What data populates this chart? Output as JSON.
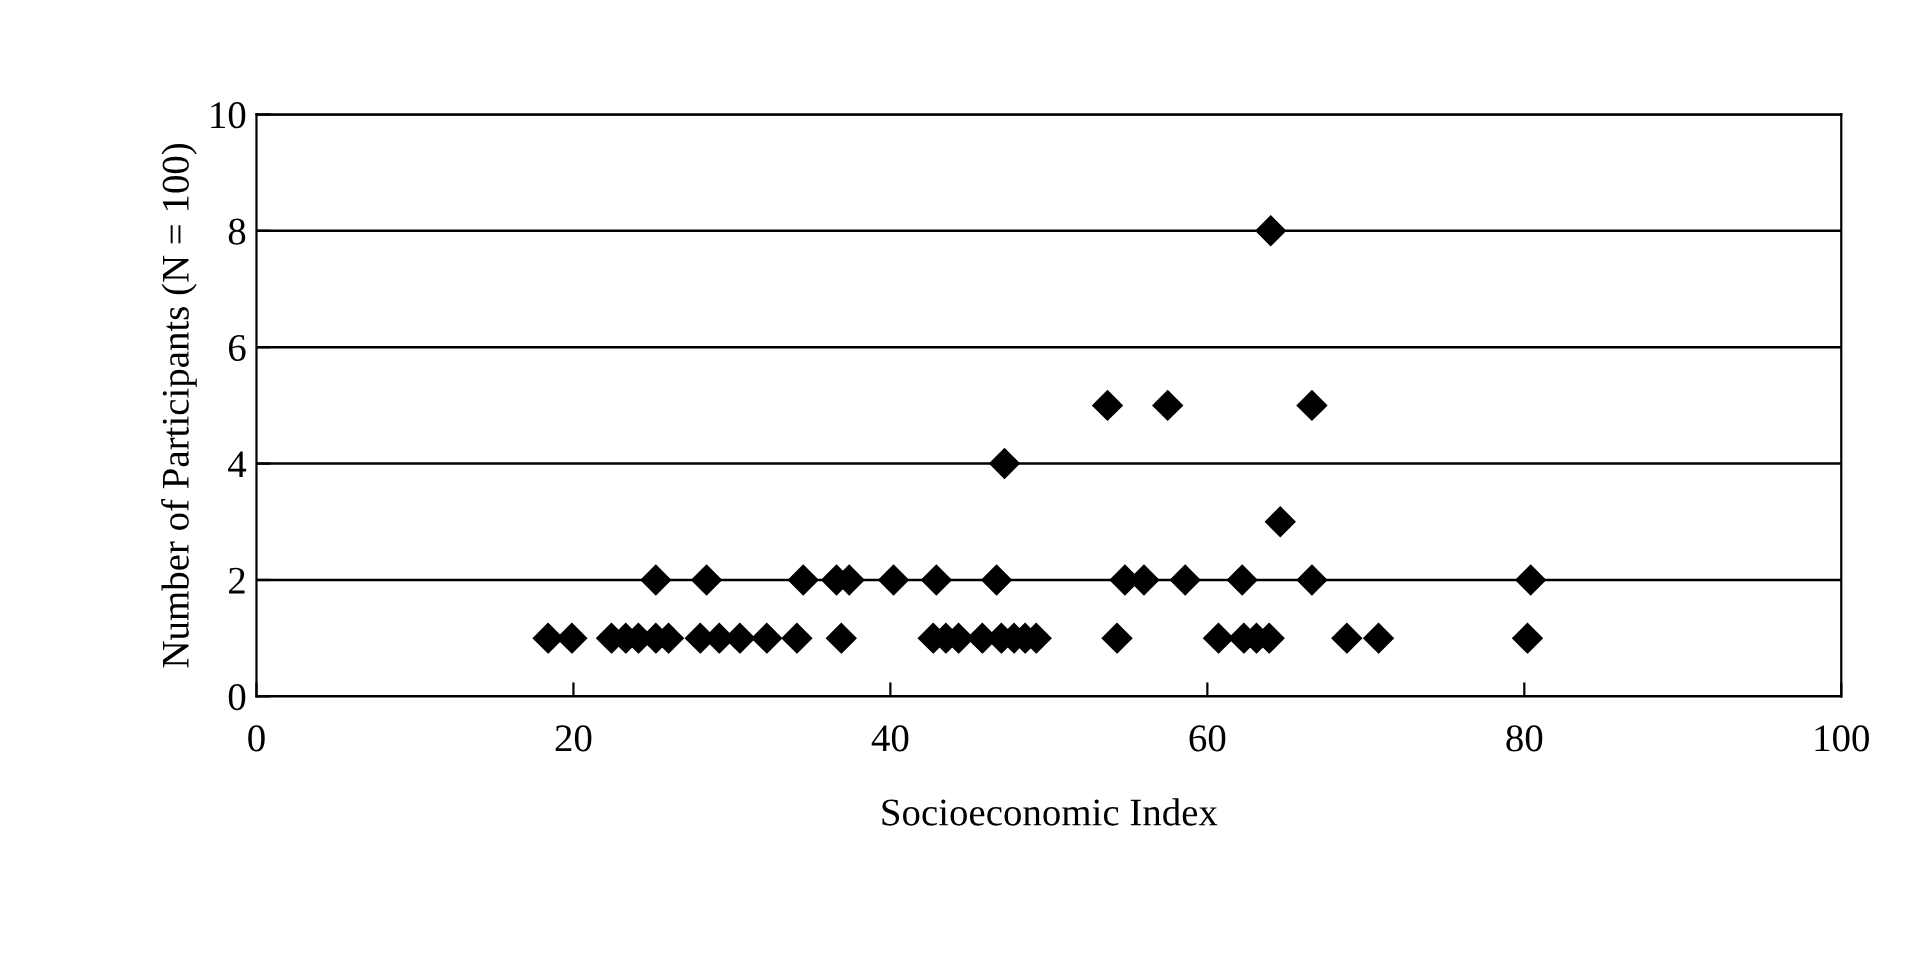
{
  "chart_data": {
    "type": "scatter",
    "xlabel": "Socioeconomic Index",
    "ylabel": "Number of Participants (N = 100)",
    "x": [
      18.4,
      19.9,
      22.4,
      23.3,
      24.1,
      25.2,
      26.0,
      28.0,
      29.2,
      30.5,
      32.2,
      34.1,
      36.9,
      42.7,
      43.5,
      44.3,
      45.8,
      47.0,
      47.8,
      48.5,
      49.2,
      54.3,
      60.7,
      62.3,
      63.1,
      63.9,
      68.8,
      70.8,
      80.2,
      25.2,
      28.4,
      34.5,
      36.6,
      37.4,
      40.2,
      42.9,
      46.7,
      54.8,
      56.0,
      58.6,
      62.2,
      66.6,
      80.4,
      47.2,
      64.6,
      53.7,
      57.5,
      66.6,
      64.0
    ],
    "values": [
      1,
      1,
      1,
      1,
      1,
      1,
      1,
      1,
      1,
      1,
      1,
      1,
      1,
      1,
      1,
      1,
      1,
      1,
      1,
      1,
      1,
      1,
      1,
      1,
      1,
      1,
      1,
      1,
      1,
      2,
      2,
      2,
      2,
      2,
      2,
      2,
      2,
      2,
      2,
      2,
      2,
      2,
      2,
      4,
      3,
      5,
      5,
      5,
      8
    ],
    "color": "#000000",
    "marker": "diamond",
    "xlim": [
      0,
      100
    ],
    "xticks": [
      0,
      20,
      40,
      60,
      80,
      100
    ],
    "ylim": [
      0,
      10
    ],
    "yticks": [
      0,
      2,
      4,
      6,
      8,
      10
    ],
    "grid": "y"
  }
}
